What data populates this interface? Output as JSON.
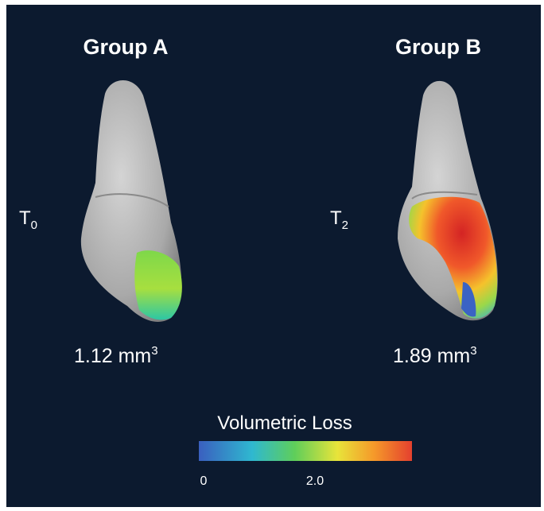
{
  "panels": [
    {
      "title": "Group A",
      "time_label": "T",
      "time_subscript": "0",
      "volume": "1.12 mm",
      "volume_superscript": "3"
    },
    {
      "title": "Group B",
      "time_label": "T",
      "time_subscript": "2",
      "volume": "1.89 mm",
      "volume_superscript": "3"
    }
  ],
  "colorbar": {
    "title": "Volumetric Loss",
    "tick_labels": [
      "0",
      "2.0"
    ]
  }
}
